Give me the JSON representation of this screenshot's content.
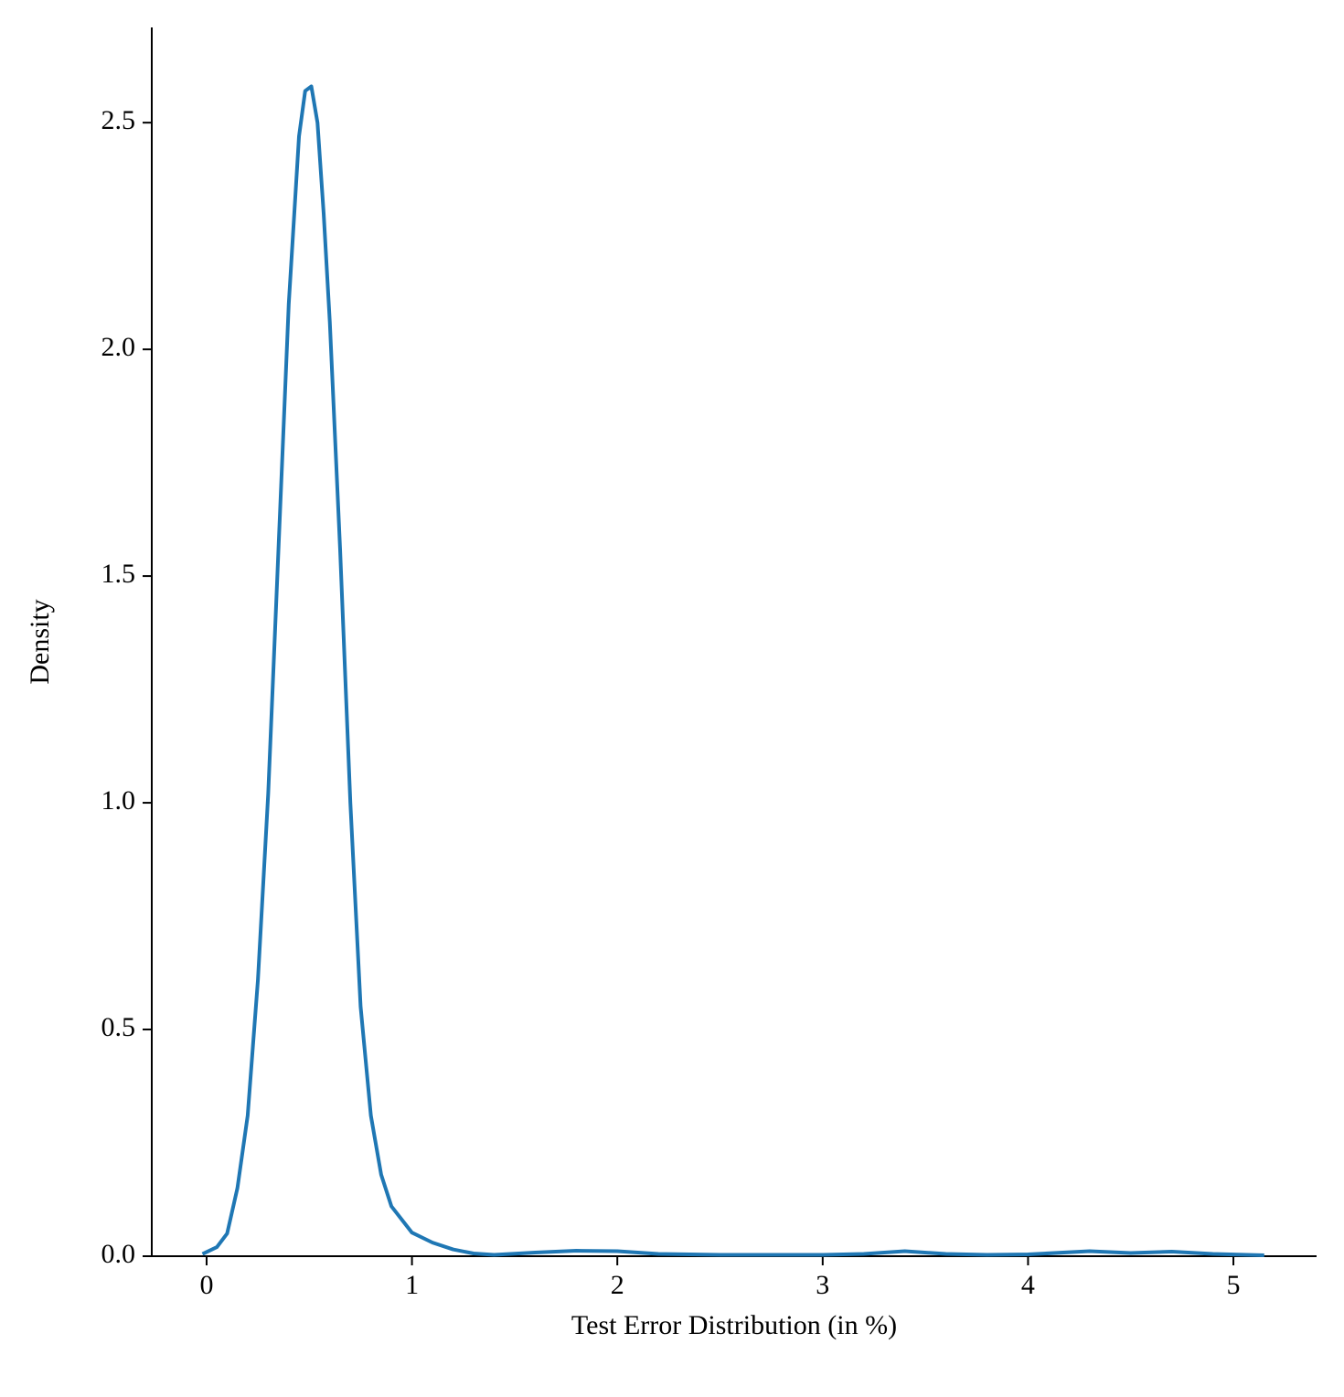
{
  "chart_data": {
    "type": "line",
    "x_label": "Test Error Distribution (in %)",
    "y_label": "Density",
    "x": [
      -0.02,
      0.05,
      0.1,
      0.15,
      0.2,
      0.25,
      0.3,
      0.35,
      0.4,
      0.45,
      0.48,
      0.51,
      0.54,
      0.57,
      0.6,
      0.65,
      0.7,
      0.75,
      0.8,
      0.85,
      0.9,
      1.0,
      1.1,
      1.2,
      1.3,
      1.4,
      1.6,
      1.8,
      2.0,
      2.2,
      2.5,
      3.0,
      3.2,
      3.4,
      3.6,
      3.8,
      4.0,
      4.3,
      4.5,
      4.7,
      4.9,
      5.15
    ],
    "values": [
      0.005,
      0.02,
      0.05,
      0.15,
      0.31,
      0.61,
      1.02,
      1.56,
      2.1,
      2.47,
      2.57,
      2.58,
      2.5,
      2.3,
      2.06,
      1.56,
      1.0,
      0.55,
      0.31,
      0.18,
      0.11,
      0.052,
      0.03,
      0.015,
      0.006,
      0.003,
      0.008,
      0.012,
      0.011,
      0.005,
      0.003,
      0.003,
      0.005,
      0.011,
      0.005,
      0.003,
      0.004,
      0.011,
      0.007,
      0.01,
      0.005,
      0.002
    ],
    "color": "#1f77b4",
    "xlim": [
      -0.267,
      5.405
    ],
    "ylim": [
      0,
      2.71
    ],
    "xticks": [
      0,
      1,
      2,
      3,
      4,
      5
    ],
    "yticks": [
      {
        "value": 0,
        "label": "0.0"
      },
      0.5,
      {
        "value": 1,
        "label": "1.0"
      },
      1.5,
      {
        "value": 2,
        "label": "2.0"
      },
      2.5
    ],
    "grid": false
  }
}
